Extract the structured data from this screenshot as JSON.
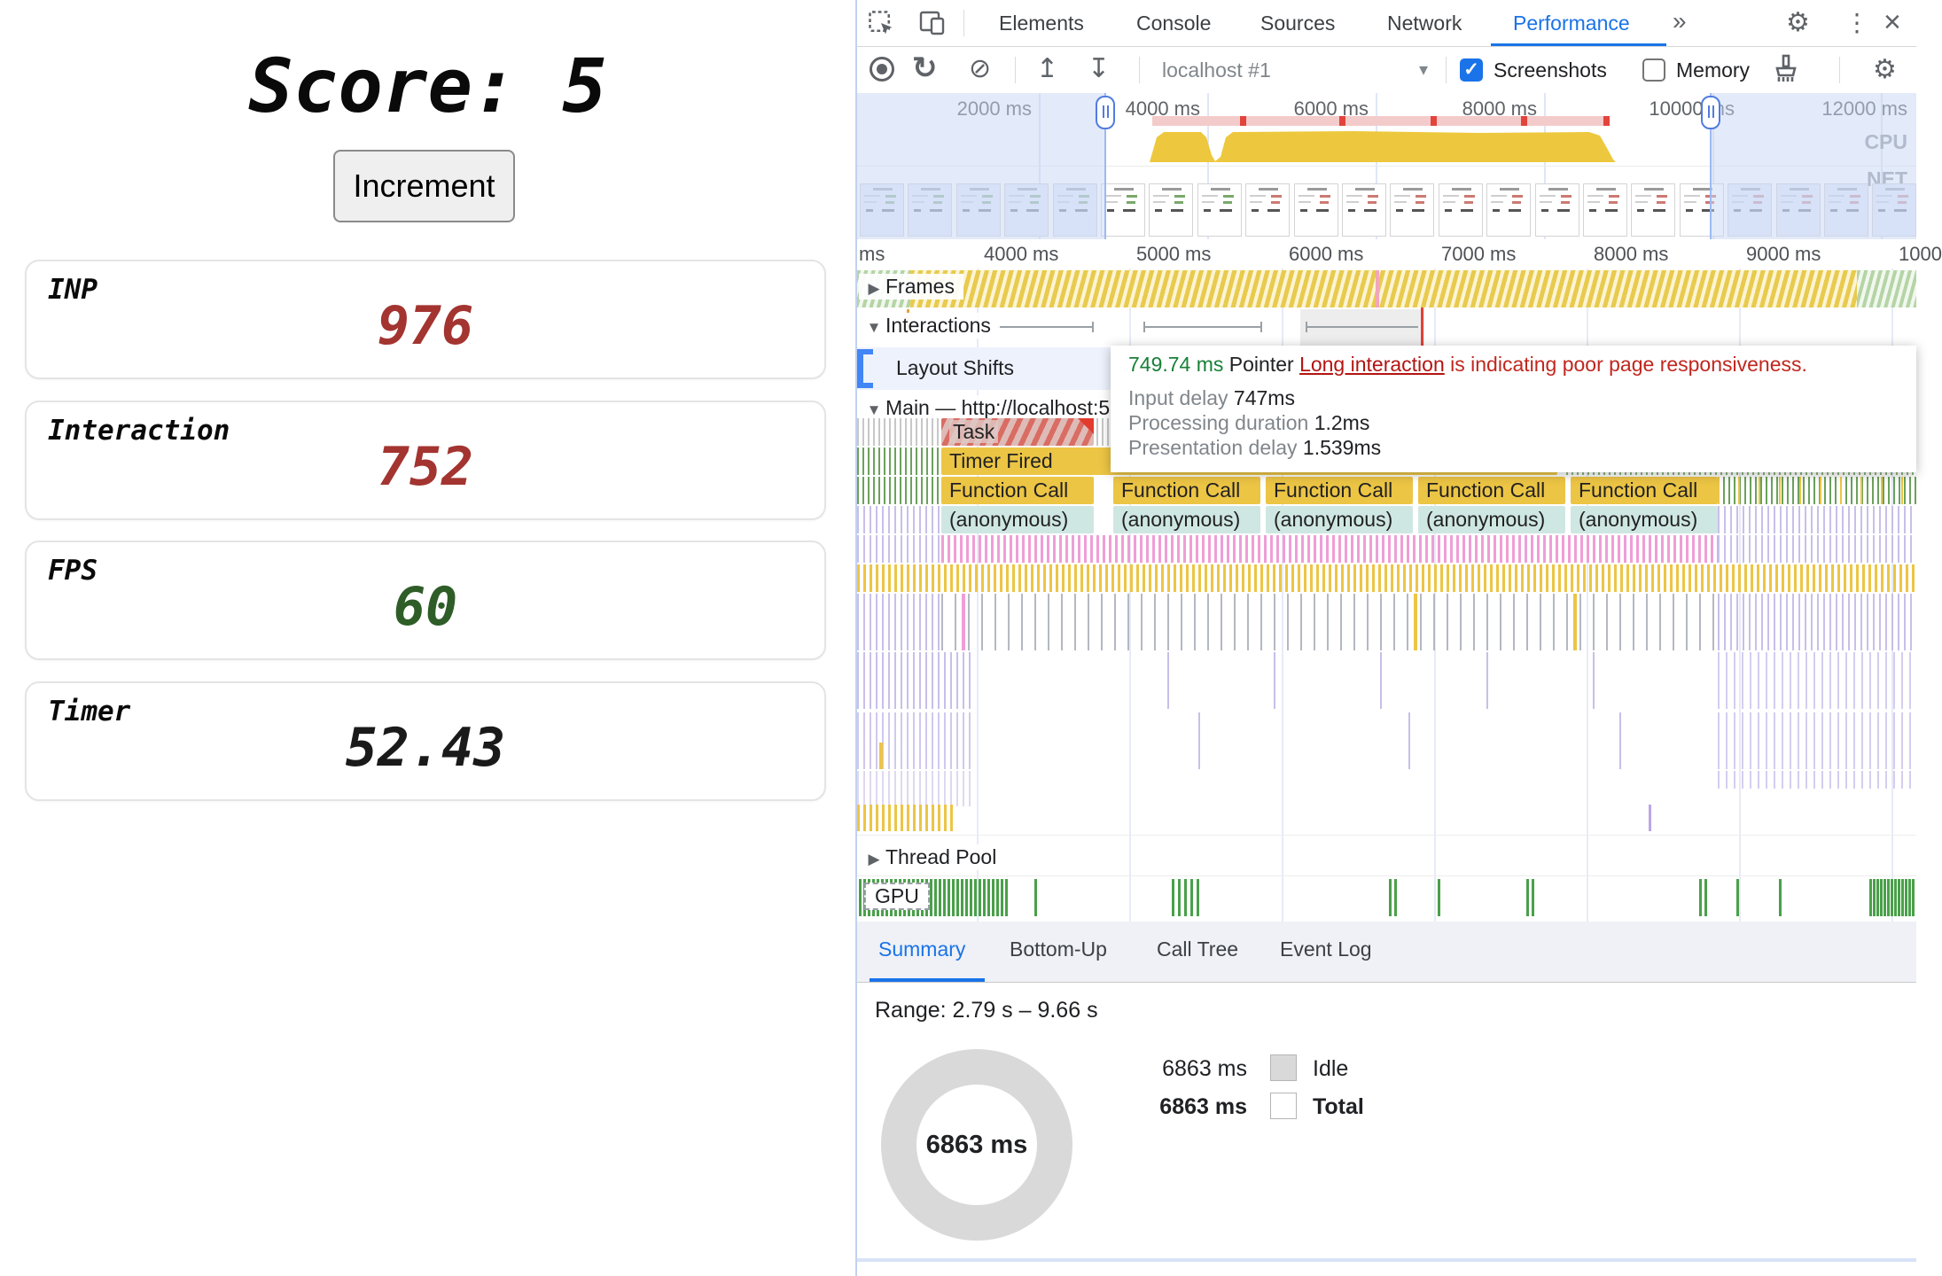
{
  "left_page": {
    "score_label": "Score: 5",
    "increment_button": "Increment",
    "metrics": [
      {
        "label": "INP",
        "value": "976",
        "color": "#a33430"
      },
      {
        "label": "Interaction",
        "value": "752",
        "color": "#a33430"
      },
      {
        "label": "FPS",
        "value": "60",
        "color": "#2f5d28"
      },
      {
        "label": "Timer",
        "value": "52.43",
        "color": "#1a1a1a"
      }
    ]
  },
  "devtools": {
    "tabs": [
      "Elements",
      "Console",
      "Sources",
      "Network",
      "Performance"
    ],
    "active_tab": "Performance",
    "icons": {
      "record": "●",
      "reload": "↻",
      "block": "⊘",
      "upload": "↥",
      "download": "↧",
      "caret": "▾",
      "check": "✓",
      "gear": "⚙",
      "kebab": "⋮",
      "close": "×",
      "more": "»",
      "open": "▼",
      "closed": "▶"
    },
    "toolbar": {
      "target_selector": "localhost #1",
      "screenshots_label": "Screenshots",
      "screenshots_checked": true,
      "memory_label": "Memory",
      "memory_checked": false
    },
    "overview": {
      "ruler_labels": [
        "2000 ms",
        "4000 ms",
        "6000 ms",
        "8000 ms",
        "10000 ms",
        "12000 ms"
      ],
      "cpu_label": "CPU",
      "net_label": "NET",
      "filmstrip_count": 22
    },
    "detail_ruler_labels": [
      "ms",
      "4000 ms",
      "5000 ms",
      "6000 ms",
      "7000 ms",
      "8000 ms",
      "9000 ms",
      "1000"
    ],
    "tracks": {
      "frames": "Frames",
      "interactions": "Interactions",
      "layout_shifts": "Layout Shifts",
      "main": "Main — http://localhost:5",
      "thread_pool": "Thread Pool",
      "gpu": "GPU"
    },
    "flame": {
      "task": "Task",
      "timer": "Timer Fired",
      "function_call": "Function Call",
      "anonymous": "(anonymous)",
      "call_count": 5
    },
    "tooltip": {
      "duration": "749.74 ms",
      "event_type": "Pointer",
      "link": "Long interaction",
      "message": "is indicating poor page responsiveness.",
      "rows": [
        {
          "label": "Input delay",
          "value": "747ms"
        },
        {
          "label": "Processing duration",
          "value": "1.2ms"
        },
        {
          "label": "Presentation delay",
          "value": "1.539ms"
        }
      ]
    },
    "bottom": {
      "tabs": [
        "Summary",
        "Bottom-Up",
        "Call Tree",
        "Event Log"
      ],
      "active": "Summary",
      "range": "Range: 2.79 s – 9.66 s",
      "donut_value": "6863 ms",
      "legend": [
        {
          "value": "6863 ms",
          "label": "Idle"
        },
        {
          "value": "6863 ms",
          "label": "Total"
        }
      ]
    },
    "colors": {
      "accent": "#1a73e8",
      "error_red": "#c0271e",
      "ok_green": "#188038",
      "flame_yellow": "#ecc545"
    }
  }
}
